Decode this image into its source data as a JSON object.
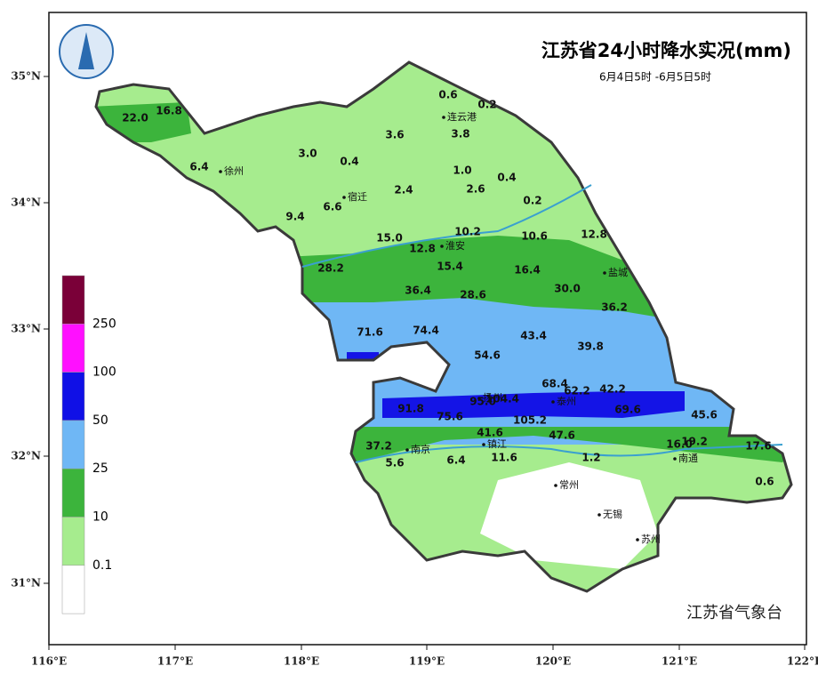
{
  "header": {
    "title": "江苏省24小时降水实况(mm)",
    "subtitle": "6月4日5时 -6月5日5时"
  },
  "axes": {
    "lon_labels": [
      "116°E",
      "117°E",
      "118°E",
      "119°E",
      "120°E",
      "121°E",
      "122°E"
    ],
    "lat_labels": [
      "35°N",
      "34°N",
      "33°N",
      "32°N",
      "31°N"
    ]
  },
  "legend": {
    "labels": [
      "250",
      "100",
      "50",
      "25",
      "10",
      "0.1"
    ],
    "colors": [
      "#7a0038",
      "#ff10ff",
      "#1010e6",
      "#6fb7f5",
      "#3cb43c",
      "#a6ec8e",
      "#ffffff"
    ]
  },
  "cities": [
    "连云港",
    "徐州",
    "宿迁",
    "淮安",
    "盐城",
    "扬州",
    "泰州",
    "南京",
    "镇江",
    "南通",
    "常州",
    "无锡",
    "苏州"
  ],
  "stations": [
    "22.0",
    "16.8",
    "6.4",
    "3.0",
    "0.4",
    "3.6",
    "0.6",
    "0.2",
    "3.8",
    "1.0",
    "0.4",
    "2.6",
    "2.4",
    "6.6",
    "9.4",
    "0.2",
    "15.0",
    "10.2",
    "10.6",
    "12.8",
    "12.8",
    "15.4",
    "16.4",
    "28.2",
    "36.4",
    "28.6",
    "30.0",
    "36.2",
    "71.6",
    "74.4",
    "43.4",
    "39.8",
    "54.6",
    "68.4",
    "62.2",
    "42.2",
    "91.8",
    "95.0",
    "104.4",
    "75.6",
    "69.6",
    "45.6",
    "105.2",
    "41.6",
    "47.6",
    "37.2",
    "5.6",
    "6.4",
    "11.6",
    "1.2",
    "16.0",
    "19.2",
    "17.6",
    "0.6"
  ],
  "credit": "江苏省气象台"
}
